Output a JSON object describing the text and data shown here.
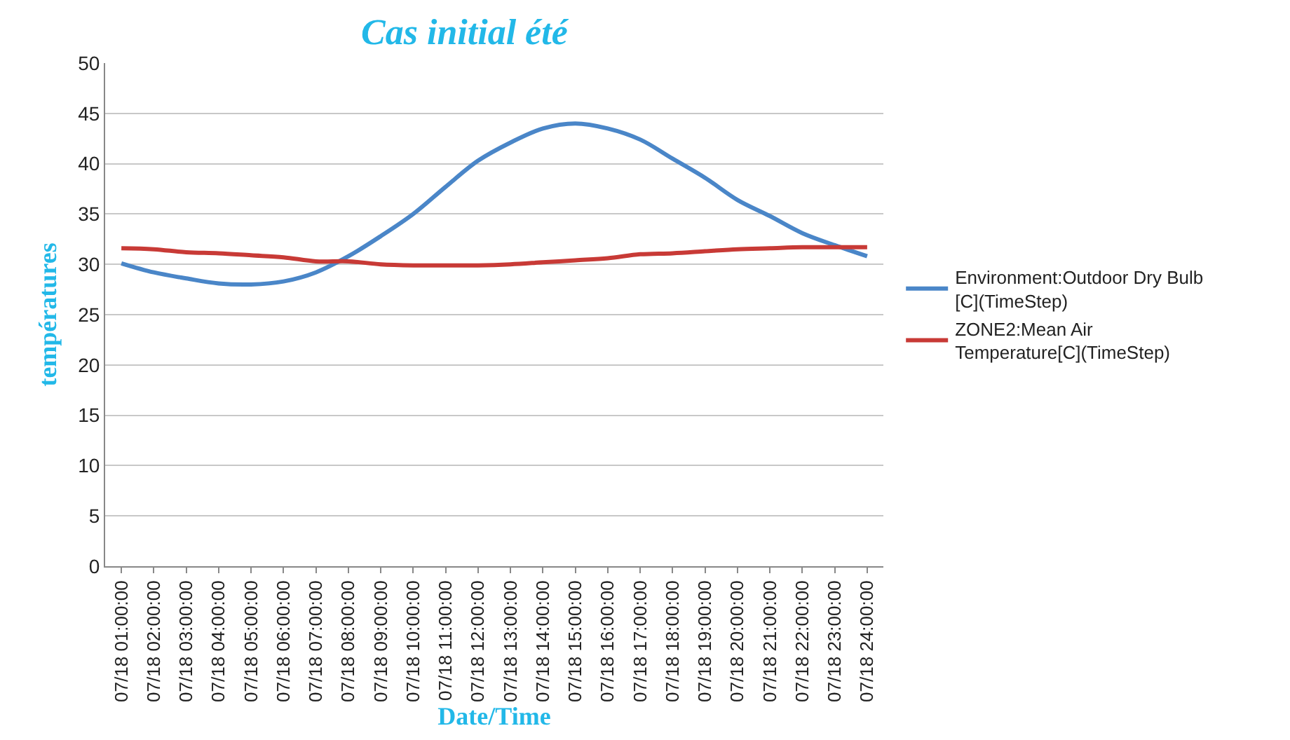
{
  "chart_data": {
    "type": "line",
    "title": "Cas initial été",
    "xlabel": "Date/Time",
    "ylabel": "températures",
    "categories": [
      "07/18 01:00:00",
      "07/18 02:00:00",
      "07/18 03:00:00",
      "07/18 04:00:00",
      "07/18 05:00:00",
      "07/18 06:00:00",
      "07/18 07:00:00",
      "07/18 08:00:00",
      "07/18 09:00:00",
      "07/18 10:00:00",
      "07/18 11:00:00",
      "07/18 12:00:00",
      "07/18 13:00:00",
      "07/18 14:00:00",
      "07/18 15:00:00",
      "07/18 16:00:00",
      "07/18 17:00:00",
      "07/18 18:00:00",
      "07/18 19:00:00",
      "07/18 20:00:00",
      "07/18 21:00:00",
      "07/18 22:00:00",
      "07/18 23:00:00",
      "07/18 24:00:00"
    ],
    "series": [
      {
        "name": "Environment:Outdoor Dry Bulb\n[C](TimeStep)",
        "color": "#4a86c8",
        "values": [
          30.1,
          29.2,
          28.6,
          28.1,
          28.0,
          28.3,
          29.2,
          30.8,
          32.8,
          35.0,
          37.7,
          40.3,
          42.1,
          43.5,
          44.0,
          43.5,
          42.4,
          40.5,
          38.6,
          36.4,
          34.8,
          33.1,
          31.9,
          30.8
        ]
      },
      {
        "name": "ZONE2:Mean Air\nTemperature[C](TimeStep)",
        "color": "#c83a36",
        "values": [
          31.6,
          31.5,
          31.2,
          31.1,
          30.9,
          30.7,
          30.3,
          30.3,
          30.0,
          29.9,
          29.9,
          29.9,
          30.0,
          30.2,
          30.4,
          30.6,
          31.0,
          31.1,
          31.3,
          31.5,
          31.6,
          31.7,
          31.7,
          31.7
        ]
      }
    ],
    "ylim": [
      0,
      50
    ],
    "yticks": [
      0,
      5,
      10,
      15,
      20,
      25,
      30,
      35,
      40,
      45,
      50
    ],
    "grid": "y",
    "legend": "right",
    "marker": "none",
    "line_style": "solid"
  }
}
